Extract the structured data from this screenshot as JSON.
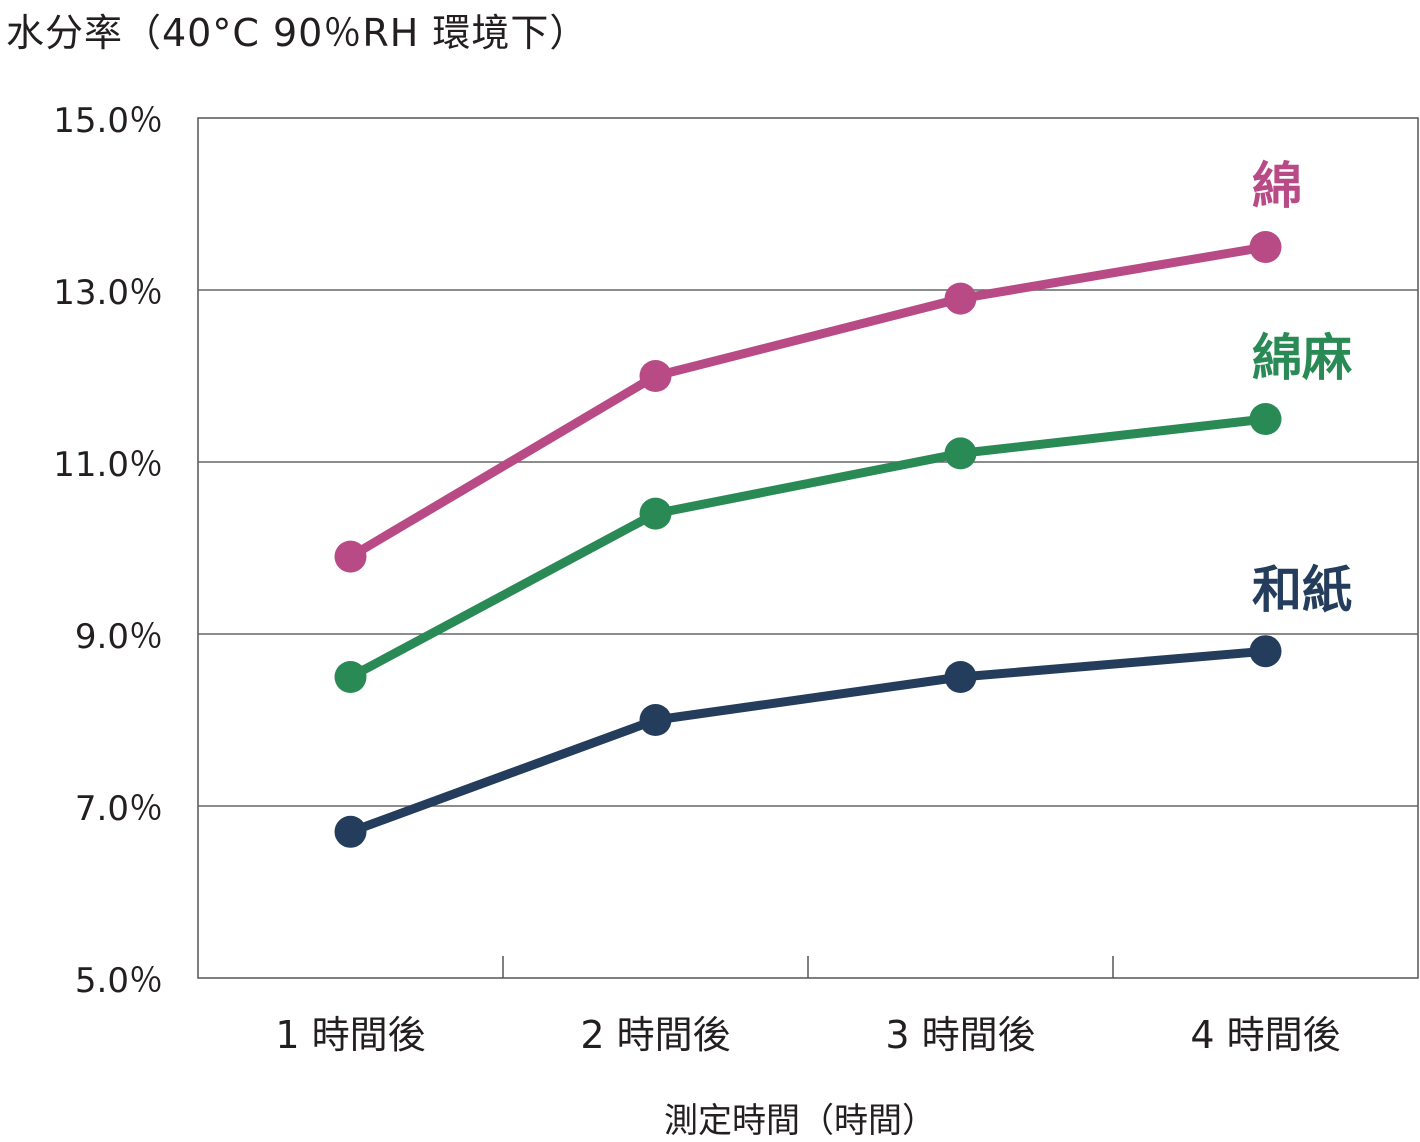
{
  "chart_data": {
    "type": "line",
    "title": "",
    "ylabel": "水分率（40°C 90％RH 環境下）",
    "xlabel": "測定時間（時間）",
    "categories": [
      "1 時間後",
      "2 時間後",
      "3 時間後",
      "4 時間後"
    ],
    "ylim": [
      5.0,
      15.0
    ],
    "yticks": [
      "15.0％",
      "13.0％",
      "11.0％",
      "9.0％",
      "7.0％",
      "5.0％"
    ],
    "ytick_values": [
      15.0,
      13.0,
      11.0,
      9.0,
      7.0,
      5.0
    ],
    "grid": true,
    "legend": "inline labels at right end of each series",
    "series": [
      {
        "name": "綿",
        "color": "#b84a86",
        "values": [
          9.9,
          12.0,
          12.9,
          13.5
        ]
      },
      {
        "name": "綿麻",
        "color": "#2a8a55",
        "values": [
          8.5,
          10.4,
          11.1,
          11.5
        ]
      },
      {
        "name": "和紙",
        "color": "#243d5c",
        "values": [
          6.7,
          8.0,
          8.5,
          8.8
        ]
      }
    ]
  }
}
